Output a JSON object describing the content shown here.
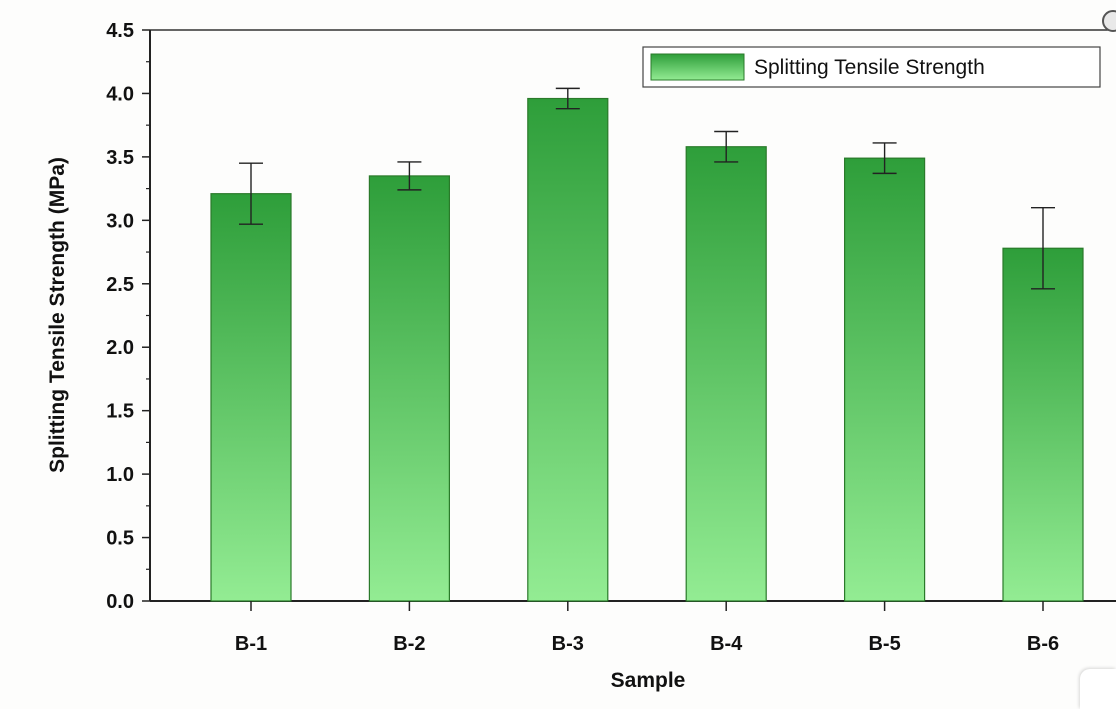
{
  "chart_data": {
    "type": "bar",
    "title": "",
    "xlabel": "Sample",
    "ylabel": "Splitting Tensile Strength (MPa)",
    "categories": [
      "B-1",
      "B-2",
      "B-3",
      "B-4",
      "B-5",
      "B-6"
    ],
    "series": [
      {
        "name": "Splitting Tensile Strength",
        "values": [
          3.21,
          3.35,
          3.96,
          3.58,
          3.49,
          2.78
        ],
        "error": [
          0.24,
          0.11,
          0.08,
          0.12,
          0.12,
          0.32
        ],
        "color": "#2e9e3a"
      }
    ],
    "ylim": [
      0,
      4.5
    ],
    "yticks": [
      "0.0",
      "0.5",
      "1.0",
      "1.5",
      "2.0",
      "2.5",
      "3.0",
      "3.5",
      "4.0",
      "4.5"
    ],
    "grid": false,
    "legend_position": "top-right",
    "colors": {
      "bar_top": "#2e9e3a",
      "bar_bottom": "#93ec93",
      "bar_edge": "#2a7a2a",
      "axis": "#222222"
    }
  }
}
